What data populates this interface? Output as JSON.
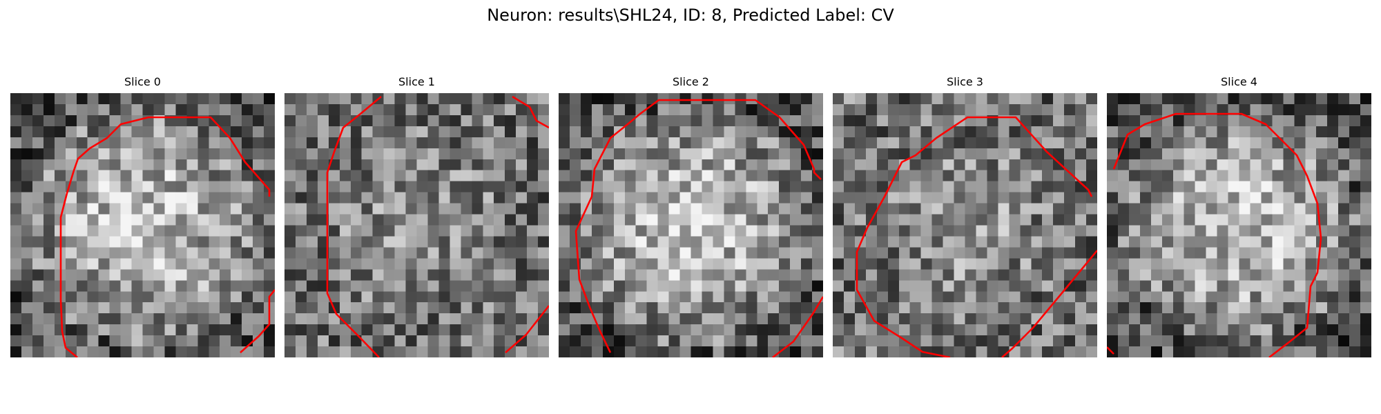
{
  "title": "Neuron: results\\SHL24, ID: 8, Predicted Label: CV",
  "slices": [
    {
      "label": "Slice 0",
      "seed": 11,
      "bright_center": true
    },
    {
      "label": "Slice 1",
      "seed": 23,
      "bright_center": false
    },
    {
      "label": "Slice 2",
      "seed": 37,
      "bright_center": true
    },
    {
      "label": "Slice 3",
      "seed": 41,
      "bright_center": false
    },
    {
      "label": "Slice 4",
      "seed": 53,
      "bright_center": true
    }
  ],
  "contour_color": "#ff0000",
  "colormap": "gray"
}
